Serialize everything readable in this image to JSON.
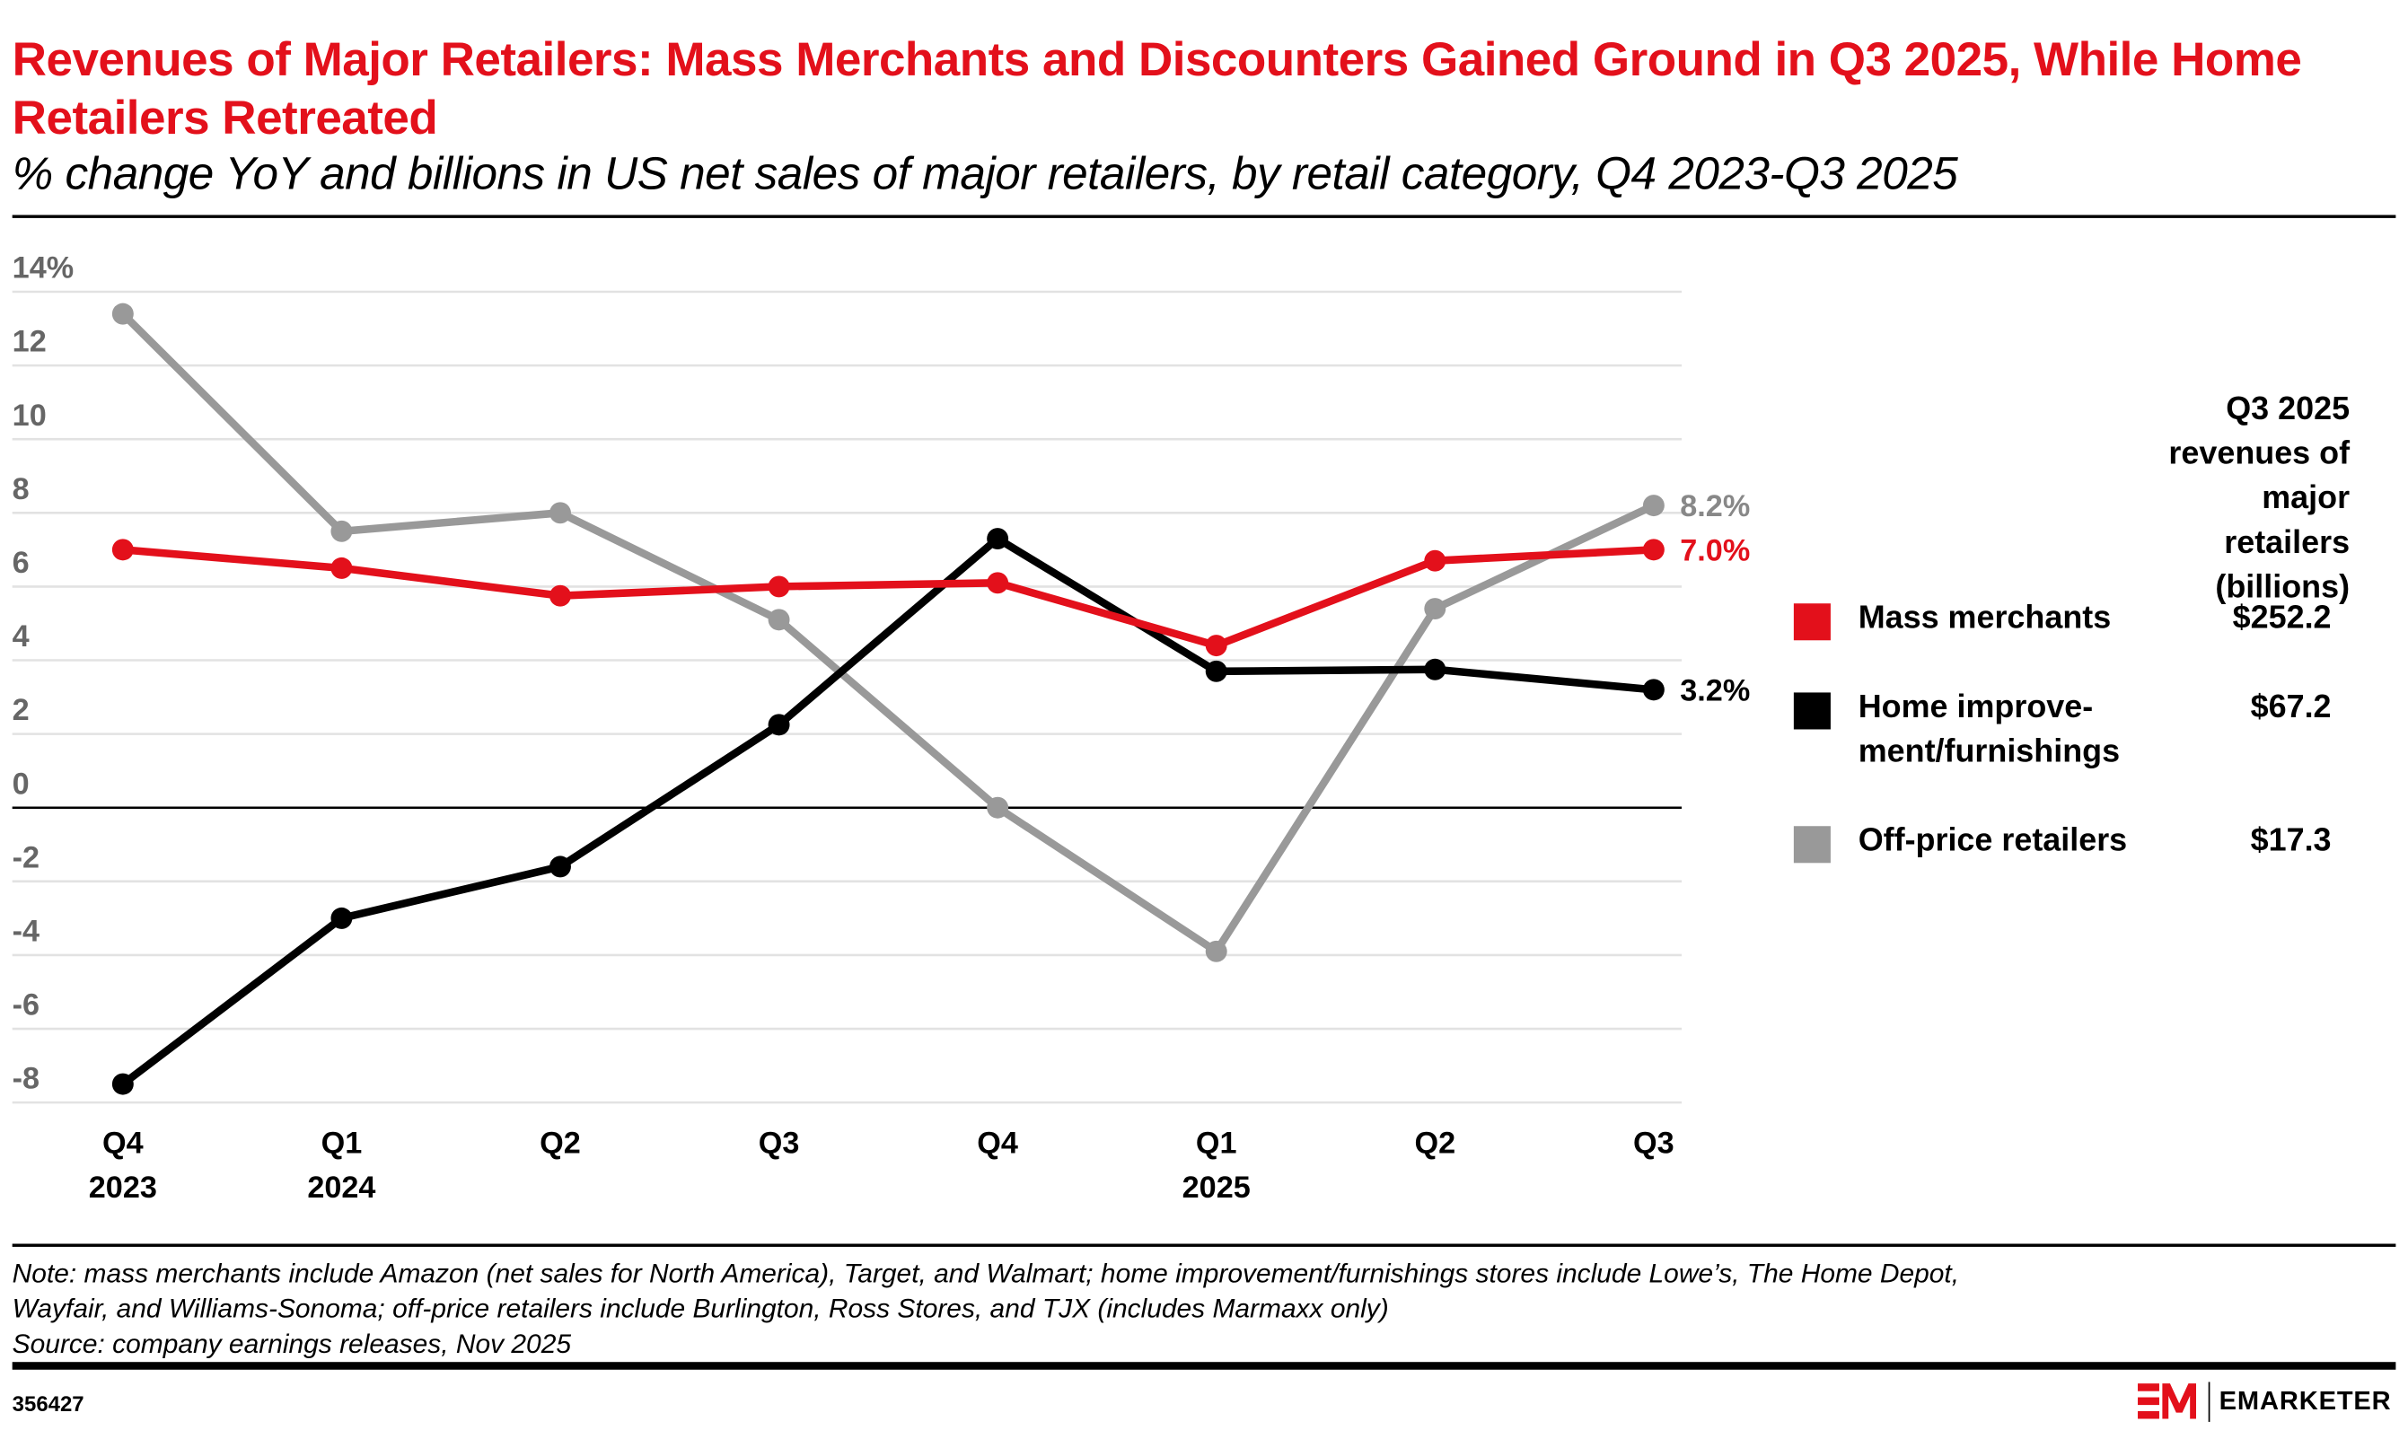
{
  "title": "Revenues of Major Retailers: Mass Merchants and Discounters Gained Ground in Q3 2025, While Home Retailers Retreated",
  "subtitle": "% change YoY and billions in US net sales of major retailers, by retail category, Q4 2023-Q3 2025",
  "chart_data": {
    "type": "line",
    "categories": [
      [
        "Q4",
        "2023"
      ],
      [
        "Q1",
        "2024"
      ],
      [
        "Q2",
        ""
      ],
      [
        "Q3",
        ""
      ],
      [
        "Q4",
        ""
      ],
      [
        "Q1",
        "2025"
      ],
      [
        "Q2",
        ""
      ],
      [
        "Q3",
        ""
      ]
    ],
    "ylim": [
      -8,
      14
    ],
    "yticks": [
      "14%",
      "12",
      "10",
      "8",
      "6",
      "4",
      "2",
      "0",
      "-2",
      "-4",
      "-6",
      "-8"
    ],
    "ytick_values": [
      14,
      12,
      10,
      8,
      6,
      4,
      2,
      0,
      -2,
      -4,
      -6,
      -8
    ],
    "grid": true,
    "series": [
      {
        "name": "Off-price retailers",
        "color": "#999999",
        "values": [
          13.4,
          7.5,
          8.0,
          5.1,
          0.0,
          -3.9,
          5.4,
          8.2
        ],
        "end_label": "8.2%"
      },
      {
        "name": "Home improvement/furnishings",
        "color": "#000000",
        "values": [
          -7.5,
          -3.0,
          -1.6,
          2.25,
          7.3,
          3.7,
          3.75,
          3.2
        ],
        "end_label": "3.2%"
      },
      {
        "name": "Mass merchants",
        "color": "#e3101b",
        "values": [
          7.0,
          6.5,
          5.75,
          6.0,
          6.1,
          4.4,
          6.7,
          7.0
        ],
        "end_label": "7.0%"
      }
    ]
  },
  "legend": {
    "heading": [
      "Q3 2025",
      "revenues of",
      "major retailers",
      "(billions)"
    ],
    "items": [
      {
        "label": [
          "Mass merchants"
        ],
        "value": "$252.2",
        "color": "#e3101b"
      },
      {
        "label": [
          "Home improve-",
          "ment/furnishings"
        ],
        "value": "$67.2",
        "color": "#000000"
      },
      {
        "label": [
          "Off-price retailers"
        ],
        "value": "$17.3",
        "color": "#999999"
      }
    ]
  },
  "note": [
    "Note: mass merchants include Amazon (net sales for North America), Target, and Walmart; home improvement/furnishings stores include Lowe’s, The Home Depot,",
    "Wayfair, and Williams-Sonoma; off-price retailers include Burlington, Ross Stores, and TJX (includes Marmaxx only)",
    "Source: company earnings releases, Nov 2025"
  ],
  "chart_id": "356427",
  "brand": "EMARKETER"
}
